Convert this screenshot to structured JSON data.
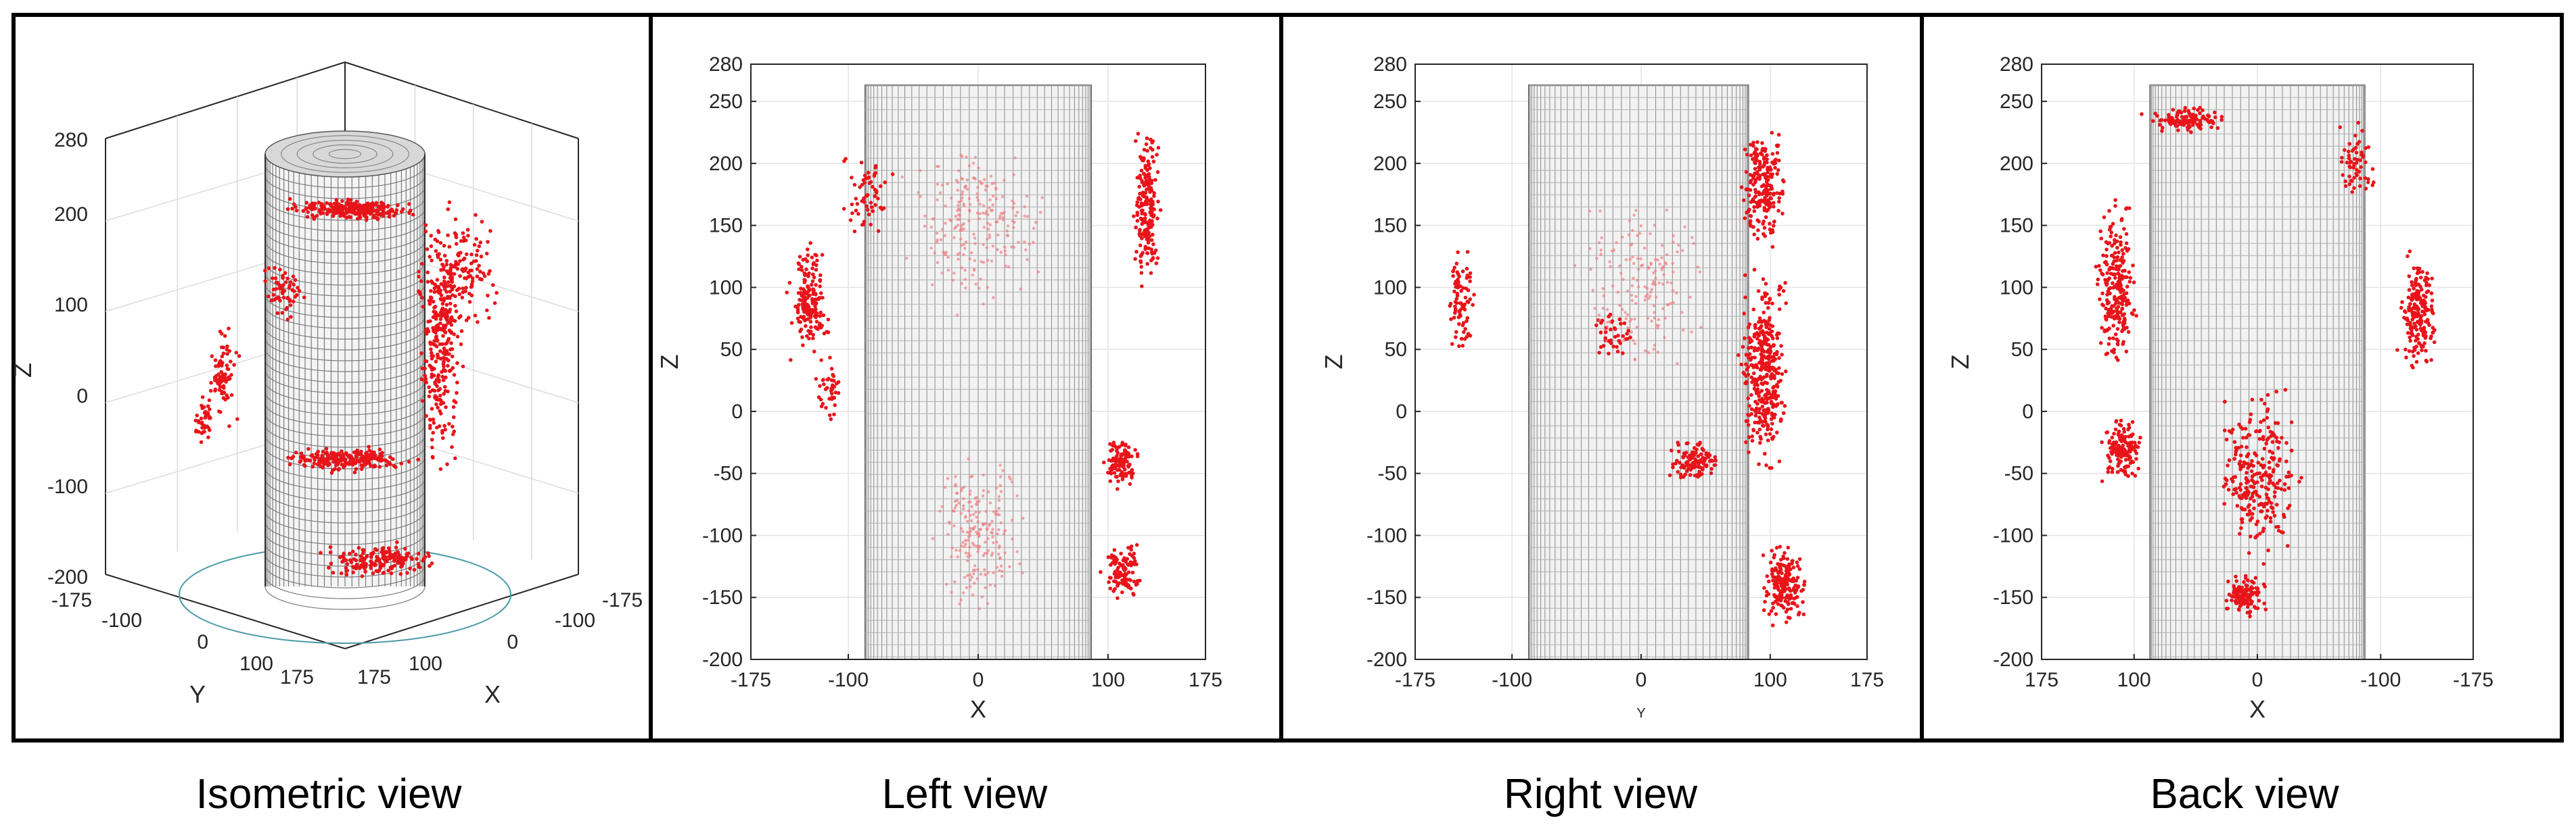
{
  "chart_data": [
    {
      "type": "scatter",
      "caption": "Isometric view",
      "projection": "3d-isometric",
      "xlabel": "X",
      "ylabel": "Y",
      "zlabel": "Z",
      "xlim": [
        -175,
        175
      ],
      "ylim": [
        -175,
        175
      ],
      "zlim": [
        -200,
        280
      ],
      "xticks": [
        "-175",
        "-100",
        "0",
        "100",
        "175"
      ],
      "yticks": [
        "-175",
        "-100",
        "0",
        "100",
        "175"
      ],
      "zticks": [
        "-200",
        "-100",
        "0",
        "100",
        "200",
        "280"
      ],
      "grid": true,
      "cylinder": {
        "radius": 75,
        "z_min": -175,
        "z_max": 260
      },
      "point_color": "#e8141a"
    },
    {
      "type": "scatter",
      "caption": "Left view",
      "xlabel": "X",
      "ylabel": "Z",
      "xlim": [
        -175,
        175
      ],
      "ylim": [
        -200,
        280
      ],
      "xticks": [
        "-175",
        "-100",
        "0",
        "100",
        "175"
      ],
      "yticks": [
        "-200",
        "-150",
        "-100",
        "-50",
        "0",
        "50",
        "100",
        "150",
        "200",
        "250",
        "280"
      ],
      "grid": true,
      "cylinder": {
        "x_min": -87,
        "x_max": 87,
        "z_max": 263
      },
      "point_color": "#e8141a"
    },
    {
      "type": "scatter",
      "caption": "Right view",
      "xlabel": "Y",
      "ylabel": "Z",
      "xlim": [
        -175,
        175
      ],
      "ylim": [
        -200,
        280
      ],
      "xticks": [
        "-175",
        "-100",
        "0",
        "100",
        "175"
      ],
      "yticks": [
        "-200",
        "-150",
        "-100",
        "-50",
        "0",
        "50",
        "100",
        "150",
        "200",
        "250",
        "280"
      ],
      "grid": true,
      "cylinder": {
        "x_min": -87,
        "x_max": 83,
        "z_max": 263
      },
      "point_color": "#e8141a"
    },
    {
      "type": "scatter",
      "caption": "Back view",
      "xlabel": "X",
      "ylabel": "Z",
      "xlim": [
        175,
        -175
      ],
      "ylim": [
        -200,
        280
      ],
      "xticks": [
        "175",
        "100",
        "0",
        "-100",
        "-175"
      ],
      "yticks": [
        "-200",
        "-150",
        "-100",
        "-50",
        "0",
        "50",
        "100",
        "150",
        "200",
        "250",
        "280"
      ],
      "grid": true,
      "cylinder": {
        "x_min": -87,
        "x_max": 87,
        "z_max": 263
      },
      "point_color": "#e8141a"
    }
  ]
}
